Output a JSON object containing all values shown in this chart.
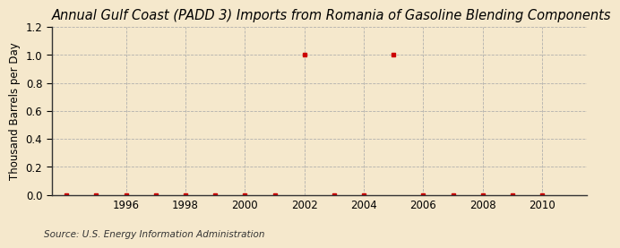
{
  "title": "Annual Gulf Coast (PADD 3) Imports from Romania of Gasoline Blending Components",
  "ylabel": "Thousand Barrels per Day",
  "source": "Source: U.S. Energy Information Administration",
  "background_color": "#f5e8cc",
  "x_data": [
    1994,
    1995,
    1996,
    1997,
    1998,
    1999,
    2000,
    2001,
    2002,
    2003,
    2004,
    2005,
    2006,
    2007,
    2008,
    2009,
    2010
  ],
  "y_data": [
    0,
    0,
    0,
    0,
    0,
    0,
    0,
    0,
    1.0,
    0,
    0,
    1.0,
    0,
    0,
    0,
    0,
    0
  ],
  "marker_color": "#cc0000",
  "xlim": [
    1993.5,
    2011.5
  ],
  "ylim": [
    0,
    1.2
  ],
  "yticks": [
    0.0,
    0.2,
    0.4,
    0.6,
    0.8,
    1.0,
    1.2
  ],
  "xticks": [
    1996,
    1998,
    2000,
    2002,
    2004,
    2006,
    2008,
    2010
  ],
  "grid_color": "#aaaaaa",
  "title_fontsize": 10.5,
  "label_fontsize": 8.5,
  "tick_fontsize": 8.5,
  "source_fontsize": 7.5
}
